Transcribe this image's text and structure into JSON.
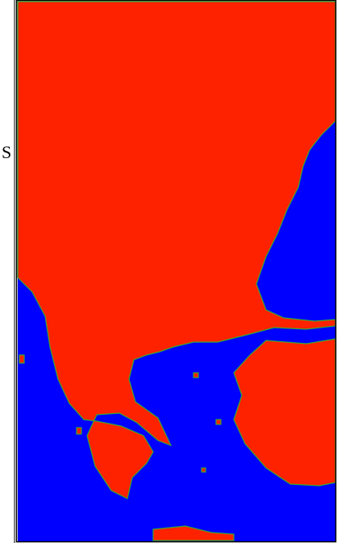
{
  "label": "S"
}
